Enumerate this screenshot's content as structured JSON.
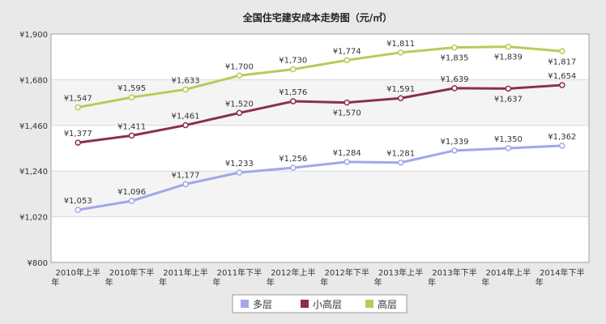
{
  "chart_data": {
    "type": "line",
    "title": "全国住宅建安成本走势图（元/㎡）",
    "xlabel": "",
    "ylabel": "",
    "ylim": [
      800,
      1900
    ],
    "yticks": [
      800,
      1020,
      1240,
      1460,
      1680,
      1900
    ],
    "ytick_labels": [
      "¥800",
      "¥1,020",
      "¥1,240",
      "¥1,460",
      "¥1,680",
      "¥1,900"
    ],
    "categories": [
      "2010年上半年",
      "2010年下半年",
      "2011年上半年",
      "2011年下半年",
      "2012年上半年",
      "2012年下半年",
      "2013年上半年",
      "2013年下半年",
      "2014年上半年",
      "2014年下半年"
    ],
    "grid": "alternating horizontal bands",
    "legend": "bottom-center",
    "series": [
      {
        "name": "多层",
        "color": "#a3a6e8",
        "values": [
          1053,
          1096,
          1177,
          1233,
          1256,
          1284,
          1281,
          1339,
          1350,
          1362
        ],
        "labels": [
          "¥1,053",
          "¥1,096",
          "¥1,177",
          "¥1,233",
          "¥1,256",
          "¥1,284",
          "¥1,281",
          "¥1,339",
          "¥1,350",
          "¥1,362"
        ]
      },
      {
        "name": "小高层",
        "color": "#8b2e50",
        "values": [
          1377,
          1411,
          1461,
          1520,
          1576,
          1570,
          1591,
          1639,
          1637,
          1654
        ],
        "labels": [
          "¥1,377",
          "¥1,411",
          "¥1,461",
          "¥1,520",
          "¥1,576",
          "¥1,570",
          "¥1,591",
          "¥1,639",
          "¥1,637",
          "¥1,654"
        ]
      },
      {
        "name": "高层",
        "color": "#b5cc5a",
        "values": [
          1547,
          1595,
          1633,
          1700,
          1730,
          1774,
          1811,
          1835,
          1839,
          1817
        ],
        "labels": [
          "¥1,547",
          "¥1,595",
          "¥1,633",
          "¥1,700",
          "¥1,730",
          "¥1,774",
          "¥1,811",
          "¥1,835",
          "¥1,839",
          "¥1,817"
        ]
      }
    ]
  }
}
